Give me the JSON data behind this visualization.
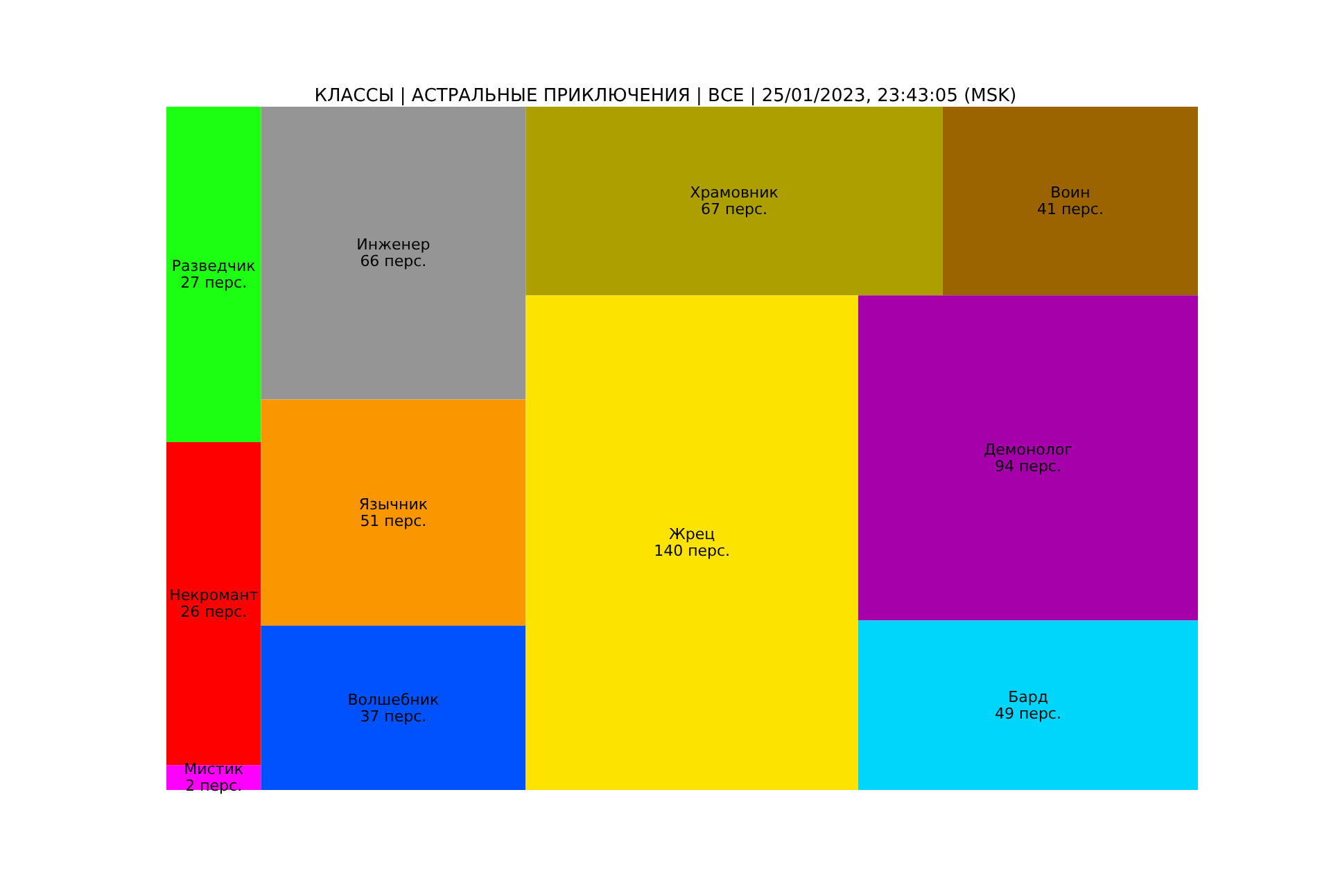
{
  "chart_data": {
    "type": "other",
    "title": "КЛАССЫ | АСТРАЛЬНЫЕ ПРИКЛЮЧЕНИЯ | ВСЕ | 25/01/2023, 23:43:05 (MSK)",
    "categories": [
      "Разведчик",
      "Некромант",
      "Мистик",
      "Инженер",
      "Язычник",
      "Волшебник",
      "Храмовник",
      "Воин",
      "Жрец",
      "Демонолог",
      "Бард"
    ],
    "values": [
      27,
      26,
      2,
      66,
      51,
      37,
      67,
      41,
      140,
      94,
      49
    ],
    "value_labels": [
      "27 перс.",
      "26 перс.",
      "2 перс.",
      "66 перс.",
      "51 перс.",
      "37 перс.",
      "67 перс.",
      "41 перс.",
      "140 перс.",
      "94 перс.",
      "49 перс."
    ],
    "colors": [
      "#1dff12",
      "#ff0000",
      "#ff00ff",
      "#959595",
      "#fa9700",
      "#0052fe",
      "#ae9f00",
      "#9c6400",
      "#fce300",
      "#a600aa",
      "#00d6fc"
    ]
  }
}
